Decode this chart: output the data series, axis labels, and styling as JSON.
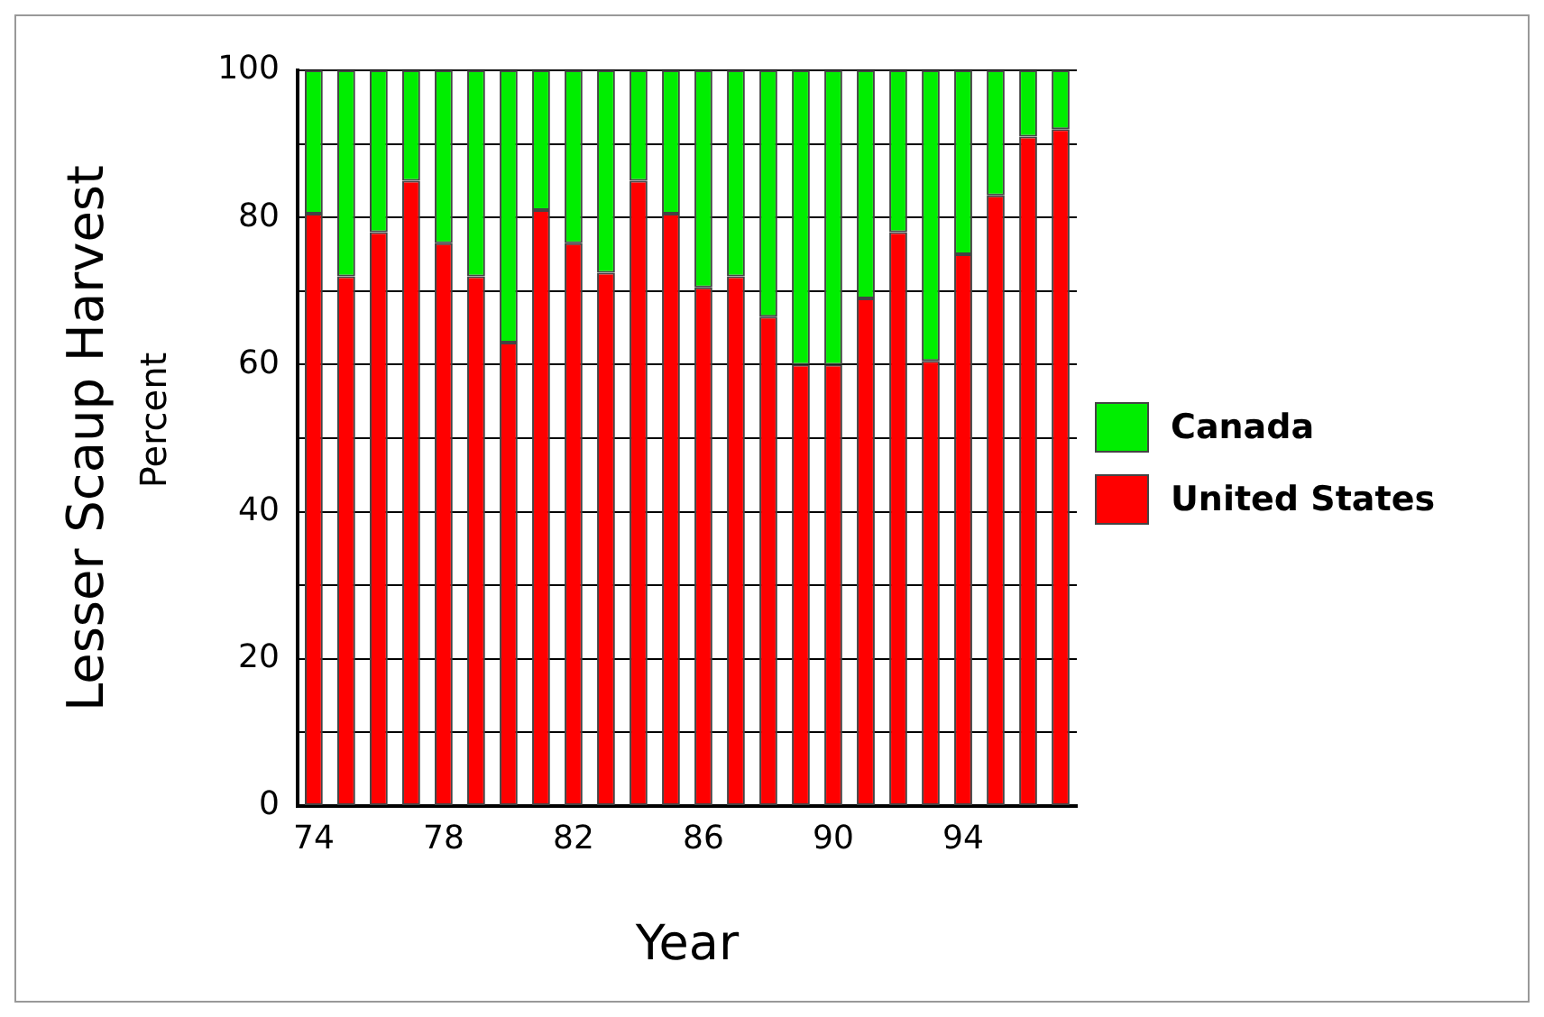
{
  "chart_data": {
    "type": "bar",
    "stacked": true,
    "xlabel": "Year",
    "ylabel": "Lesser Scaup Harvest",
    "annotations": [
      "Percent"
    ],
    "categories": [
      "74",
      null,
      null,
      null,
      "78",
      null,
      null,
      null,
      "82",
      null,
      null,
      null,
      "86",
      null,
      null,
      null,
      "90",
      null,
      null,
      null,
      "94",
      null,
      null,
      null
    ],
    "series": [
      {
        "name": "United States",
        "color": "#ff0000",
        "values": [
          80.5,
          72,
          78,
          85,
          76.5,
          72,
          63,
          81,
          76.5,
          72.5,
          85,
          80.5,
          70.5,
          72,
          66.5,
          60,
          60,
          69,
          78,
          60.5,
          75,
          83,
          91,
          92
        ]
      },
      {
        "name": "Canada",
        "color": "#00ee00",
        "values": [
          19.5,
          28,
          22,
          15,
          23.5,
          28,
          37,
          19,
          23.5,
          27.5,
          15,
          19.5,
          29.5,
          28,
          33.5,
          40,
          40,
          31,
          22,
          39.5,
          25,
          17,
          9,
          8
        ]
      }
    ],
    "ylim": [
      0,
      100
    ],
    "yticks": [
      0,
      {
        "value": 10,
        "label": null
      },
      20,
      {
        "value": 30,
        "label": null
      },
      40,
      {
        "value": 50,
        "label": null
      },
      60,
      {
        "value": 70,
        "label": null
      },
      80,
      {
        "value": 90,
        "label": null
      },
      100
    ],
    "grid": "y",
    "legend": "right"
  }
}
